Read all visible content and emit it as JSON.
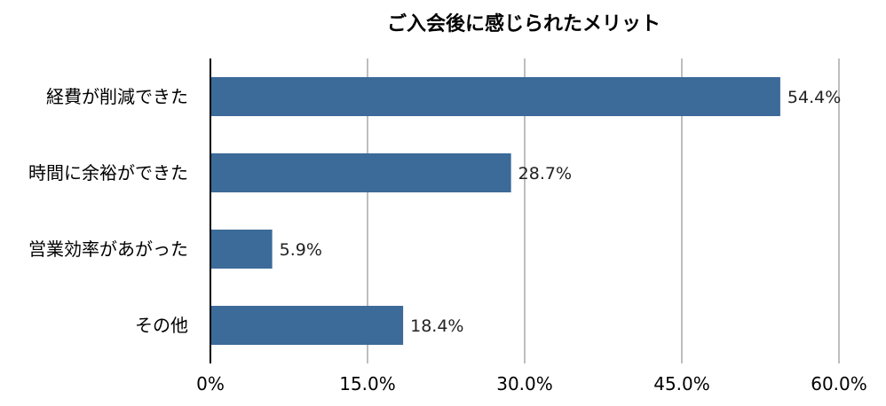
{
  "chart_data": {
    "type": "bar",
    "orientation": "horizontal",
    "title": "ご入会後に感じられたメリット",
    "categories": [
      "経費が削減できた",
      "時間に余裕ができた",
      "営業効率があがった",
      "その他"
    ],
    "values": [
      54.4,
      28.7,
      5.9,
      18.4
    ],
    "value_labels": [
      "54.4%",
      "28.7%",
      "5.9%",
      "18.4%"
    ],
    "xlim": [
      0,
      60
    ],
    "xticks": [
      0,
      15,
      30,
      45,
      60
    ],
    "xtick_labels": [
      "0%",
      "15.0%",
      "30.0%",
      "45.0%",
      "60.0%"
    ],
    "xlabel": "",
    "ylabel": "",
    "grid": "vertical",
    "legend": "none",
    "bar_color": "#3c6a99",
    "grid_color": "#a8a8a8"
  }
}
